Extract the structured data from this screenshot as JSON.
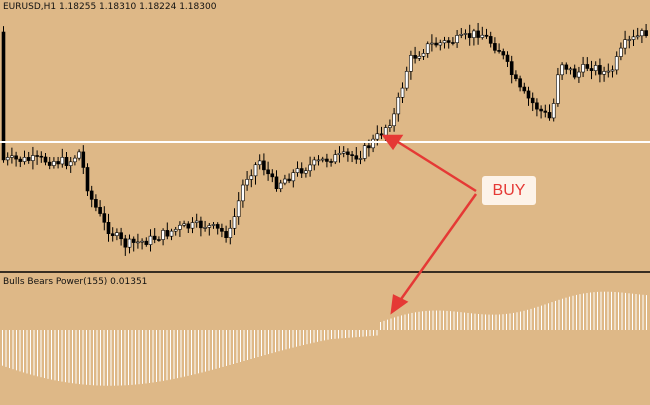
{
  "chart": {
    "symbol_header": "EURUSD,H1  1.18255 1.18310 1.18224 1.18300",
    "indicator_header": "Bulls Bears Power(155) 0.01351",
    "annotation": "BUY",
    "colors": {
      "background": "#deb887",
      "candle_outline": "#000000",
      "bull_fill": "#ffffff",
      "bear_fill": "#000000",
      "level_line": "#ffffff",
      "separator": "#000000",
      "histogram": "#ffffff",
      "arrow": "#e53935",
      "badge_background": "#fdf3e9"
    }
  }
}
